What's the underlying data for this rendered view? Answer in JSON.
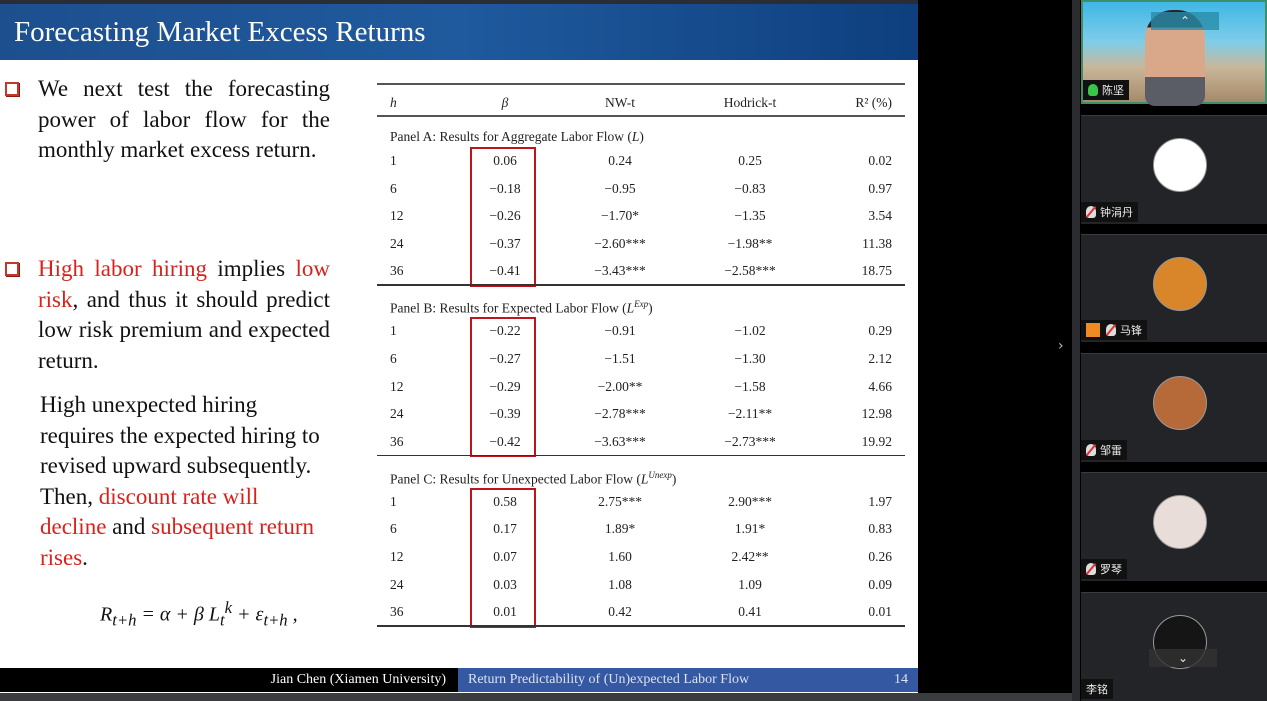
{
  "slide": {
    "title": "Forecasting Market Excess Returns",
    "bullet1": "We next test the forecasting power of labor flow for the monthly market excess return.",
    "bullet2_parts": {
      "red1": "High labor hiring",
      "t1": " implies ",
      "red2": "low risk",
      "t2": ", and thus it should predict low risk premium and expected return."
    },
    "para_parts": {
      "t1": "High unexpected hiring requires the expected hiring to revised upward subsequently. Then, ",
      "red1": "discount rate will decline",
      "t2": " and ",
      "red2": "subsequent return rises",
      "t3": "."
    },
    "formula": "R_{t+h} = α + β L_t^k + ε_{t+h} ,",
    "footer_author": "Jian Chen (Xiamen University)",
    "footer_title": "Return Predictability of (Un)expected Labor Flow",
    "page_number": "14"
  },
  "table": {
    "headers": [
      "h",
      "β",
      "NW-t",
      "Hodrick-t",
      "R² (%)"
    ],
    "panels": [
      {
        "label": "Panel A: Results for Aggregate Labor Flow (L)",
        "rows": [
          [
            "1",
            "0.06",
            "0.24",
            "0.25",
            "0.02"
          ],
          [
            "6",
            "−0.18",
            "−0.95",
            "−0.83",
            "0.97"
          ],
          [
            "12",
            "−0.26",
            "−1.70*",
            "−1.35",
            "3.54"
          ],
          [
            "24",
            "−0.37",
            "−2.60***",
            "−1.98**",
            "11.38"
          ],
          [
            "36",
            "−0.41",
            "−3.43***",
            "−2.58***",
            "18.75"
          ]
        ]
      },
      {
        "label": "Panel B: Results for Expected Labor Flow (L^Exp)",
        "rows": [
          [
            "1",
            "−0.22",
            "−0.91",
            "−1.02",
            "0.29"
          ],
          [
            "6",
            "−0.27",
            "−1.51",
            "−1.30",
            "2.12"
          ],
          [
            "12",
            "−0.29",
            "−2.00**",
            "−1.58",
            "4.66"
          ],
          [
            "24",
            "−0.39",
            "−2.78***",
            "−2.11**",
            "12.98"
          ],
          [
            "36",
            "−0.42",
            "−3.63***",
            "−2.73***",
            "19.92"
          ]
        ]
      },
      {
        "label": "Panel C: Results for Unexpected Labor Flow (L^Unexp)",
        "rows": [
          [
            "1",
            "0.58",
            "2.75***",
            "2.90***",
            "1.97"
          ],
          [
            "6",
            "0.17",
            "1.89*",
            "1.91*",
            "0.83"
          ],
          [
            "12",
            "0.07",
            "1.60",
            "2.42**",
            "0.26"
          ],
          [
            "24",
            "0.03",
            "1.08",
            "1.09",
            "0.09"
          ],
          [
            "36",
            "0.01",
            "0.42",
            "0.41",
            "0.01"
          ]
        ]
      }
    ],
    "highlight_color": "#c0141c"
  },
  "participants": [
    {
      "name": "陈坚",
      "mic": "on",
      "video": true
    },
    {
      "name": "钟涓丹",
      "mic": "muted",
      "avatar_color": "#ffffff"
    },
    {
      "name": "马锋",
      "mic": "muted",
      "avatar_color": "#d9862a",
      "host_badge": true
    },
    {
      "name": "邹雷",
      "mic": "muted",
      "avatar_color": "#b66a3a"
    },
    {
      "name": "罗琴",
      "mic": "muted",
      "avatar_color": "#e8ddd8"
    },
    {
      "name": "李铭",
      "mic": "none",
      "avatar_color": "#151515"
    }
  ],
  "colors": {
    "accent_red": "#d9211b",
    "title_blue": "#1d4f8e",
    "footer_blue": "#3558a3"
  }
}
